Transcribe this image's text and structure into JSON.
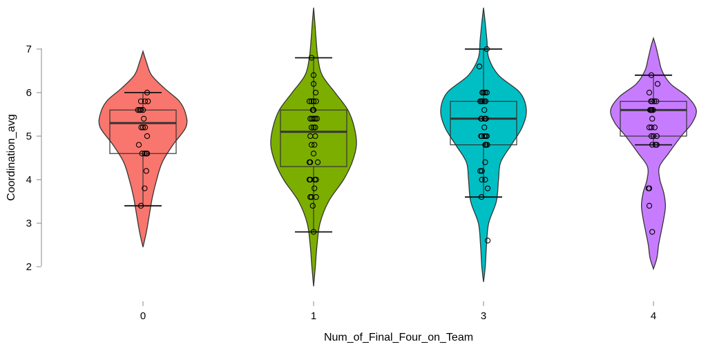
{
  "chart_data": {
    "type": "violin",
    "xlabel": "Num_of_Final_Four_on_Team",
    "ylabel": "Coordination_avg",
    "categories": [
      "0",
      "1",
      "3",
      "4"
    ],
    "ylim": [
      1.5,
      7.6
    ],
    "yticks": [
      2,
      3,
      4,
      5,
      6,
      7
    ],
    "grid": false,
    "legend": "none",
    "colors": [
      "#f8766d",
      "#7cae00",
      "#00bfc4",
      "#c77cff"
    ],
    "groups": [
      {
        "category": "0",
        "box": {
          "whisker_low": 3.4,
          "q1": 4.6,
          "median": 5.3,
          "q3": 5.6,
          "whisker_high": 6.0
        },
        "density": [
          [
            2.45,
            0.0
          ],
          [
            2.8,
            0.08
          ],
          [
            3.2,
            0.15
          ],
          [
            3.6,
            0.22
          ],
          [
            4.0,
            0.32
          ],
          [
            4.4,
            0.45
          ],
          [
            4.8,
            0.7
          ],
          [
            5.2,
            1.0
          ],
          [
            5.5,
            1.0
          ],
          [
            5.8,
            0.85
          ],
          [
            6.1,
            0.5
          ],
          [
            6.4,
            0.2
          ],
          [
            6.7,
            0.08
          ],
          [
            6.95,
            0.0
          ]
        ],
        "points": [
          [
            6.0,
            0.1
          ],
          [
            5.8,
            -0.05
          ],
          [
            5.8,
            0.05
          ],
          [
            5.8,
            0.12
          ],
          [
            5.6,
            -0.12
          ],
          [
            5.6,
            -0.08
          ],
          [
            5.6,
            -0.05
          ],
          [
            5.6,
            0.0
          ],
          [
            5.4,
            0.02
          ],
          [
            5.2,
            -0.04
          ],
          [
            5.2,
            0.0
          ],
          [
            5.2,
            0.05
          ],
          [
            5.0,
            0.1
          ],
          [
            4.8,
            -0.1
          ],
          [
            4.6,
            -0.02
          ],
          [
            4.6,
            0.04
          ],
          [
            4.6,
            0.08
          ],
          [
            4.6,
            0.1
          ],
          [
            4.2,
            0.08
          ],
          [
            3.8,
            0.04
          ],
          [
            3.4,
            -0.05
          ]
        ]
      },
      {
        "category": "1",
        "box": {
          "whisker_low": 2.8,
          "q1": 4.3,
          "median": 5.1,
          "q3": 5.6,
          "whisker_high": 6.8
        },
        "density": [
          [
            1.55,
            0.0
          ],
          [
            2.0,
            0.04
          ],
          [
            2.5,
            0.08
          ],
          [
            3.0,
            0.15
          ],
          [
            3.5,
            0.35
          ],
          [
            4.0,
            0.7
          ],
          [
            4.4,
            0.9
          ],
          [
            4.8,
            1.0
          ],
          [
            5.2,
            0.95
          ],
          [
            5.6,
            0.8
          ],
          [
            6.0,
            0.5
          ],
          [
            6.4,
            0.2
          ],
          [
            6.8,
            0.1
          ],
          [
            7.2,
            0.06
          ],
          [
            7.6,
            0.03
          ],
          [
            7.95,
            0.0
          ]
        ],
        "points": [
          [
            6.8,
            -0.05
          ],
          [
            6.4,
            0.0
          ],
          [
            6.2,
            0.0
          ],
          [
            6.0,
            0.05
          ],
          [
            5.8,
            -0.1
          ],
          [
            5.8,
            -0.05
          ],
          [
            5.8,
            0.0
          ],
          [
            5.8,
            0.06
          ],
          [
            5.6,
            -0.02
          ],
          [
            5.6,
            0.0
          ],
          [
            5.4,
            -0.08
          ],
          [
            5.4,
            -0.04
          ],
          [
            5.4,
            0.0
          ],
          [
            5.4,
            0.04
          ],
          [
            5.4,
            0.08
          ],
          [
            5.2,
            -0.05
          ],
          [
            5.2,
            0.0
          ],
          [
            5.2,
            0.04
          ],
          [
            5.0,
            -0.08
          ],
          [
            5.0,
            0.04
          ],
          [
            4.8,
            -0.05
          ],
          [
            4.8,
            0.02
          ],
          [
            4.6,
            0.0
          ],
          [
            4.4,
            -0.1
          ],
          [
            4.4,
            -0.08
          ],
          [
            4.4,
            0.1
          ],
          [
            4.0,
            -0.1
          ],
          [
            4.0,
            -0.08
          ],
          [
            4.0,
            0.03
          ],
          [
            4.0,
            0.06
          ],
          [
            3.8,
            0.02
          ],
          [
            3.6,
            -0.08
          ],
          [
            3.6,
            -0.05
          ],
          [
            3.6,
            0.06
          ],
          [
            3.4,
            -0.02
          ],
          [
            2.8,
            0.0
          ]
        ]
      },
      {
        "category": "3",
        "box": {
          "whisker_low": 3.6,
          "q1": 4.8,
          "median": 5.4,
          "q3": 5.8,
          "whisker_high": 7.0
        },
        "density": [
          [
            1.65,
            0.0
          ],
          [
            2.0,
            0.04
          ],
          [
            2.5,
            0.07
          ],
          [
            3.0,
            0.12
          ],
          [
            3.5,
            0.3
          ],
          [
            4.0,
            0.35
          ],
          [
            4.4,
            0.4
          ],
          [
            4.8,
            0.65
          ],
          [
            5.2,
            0.9
          ],
          [
            5.6,
            1.0
          ],
          [
            6.0,
            0.85
          ],
          [
            6.4,
            0.35
          ],
          [
            6.8,
            0.12
          ],
          [
            7.2,
            0.08
          ],
          [
            7.6,
            0.04
          ],
          [
            7.95,
            0.0
          ]
        ],
        "points": [
          [
            7.0,
            0.08
          ],
          [
            6.6,
            -0.1
          ],
          [
            6.0,
            -0.03
          ],
          [
            6.0,
            0.0
          ],
          [
            6.0,
            0.04
          ],
          [
            6.0,
            0.08
          ],
          [
            5.8,
            -0.08
          ],
          [
            5.8,
            -0.05
          ],
          [
            5.8,
            -0.02
          ],
          [
            5.8,
            0.02
          ],
          [
            5.8,
            0.05
          ],
          [
            5.6,
            0.02
          ],
          [
            5.4,
            -0.06
          ],
          [
            5.4,
            -0.05
          ],
          [
            5.4,
            0.03
          ],
          [
            5.4,
            0.06
          ],
          [
            5.2,
            0.02
          ],
          [
            5.0,
            -0.06
          ],
          [
            5.0,
            -0.04
          ],
          [
            5.0,
            0.02
          ],
          [
            5.0,
            0.05
          ],
          [
            5.0,
            0.08
          ],
          [
            4.8,
            0.04
          ],
          [
            4.8,
            0.06
          ],
          [
            4.8,
            0.09
          ],
          [
            4.4,
            0.04
          ],
          [
            4.2,
            -0.08
          ],
          [
            4.2,
            -0.04
          ],
          [
            4.0,
            -0.04
          ],
          [
            4.0,
            0.04
          ],
          [
            3.8,
            0.1
          ],
          [
            3.6,
            -0.05
          ],
          [
            2.6,
            0.1
          ]
        ]
      },
      {
        "category": "4",
        "box": {
          "whisker_low": 4.8,
          "q1": 5.0,
          "median": 5.6,
          "q3": 5.8,
          "whisker_high": 6.4
        },
        "density": [
          [
            1.95,
            0.0
          ],
          [
            2.2,
            0.08
          ],
          [
            2.5,
            0.12
          ],
          [
            2.8,
            0.18
          ],
          [
            3.1,
            0.24
          ],
          [
            3.4,
            0.28
          ],
          [
            3.7,
            0.24
          ],
          [
            4.0,
            0.15
          ],
          [
            4.3,
            0.14
          ],
          [
            4.6,
            0.35
          ],
          [
            5.0,
            0.65
          ],
          [
            5.3,
            0.9
          ],
          [
            5.6,
            1.0
          ],
          [
            5.9,
            0.8
          ],
          [
            6.2,
            0.4
          ],
          [
            6.5,
            0.2
          ],
          [
            6.8,
            0.12
          ],
          [
            7.05,
            0.06
          ],
          [
            7.25,
            0.0
          ]
        ],
        "points": [
          [
            6.4,
            -0.05
          ],
          [
            6.2,
            0.1
          ],
          [
            6.0,
            -0.1
          ],
          [
            5.8,
            -0.06
          ],
          [
            5.8,
            -0.03
          ],
          [
            5.8,
            0.02
          ],
          [
            5.8,
            0.07
          ],
          [
            5.6,
            -0.08
          ],
          [
            5.6,
            -0.06
          ],
          [
            5.6,
            -0.04
          ],
          [
            5.6,
            -0.01
          ],
          [
            5.4,
            -0.03
          ],
          [
            5.2,
            -0.1
          ],
          [
            5.2,
            -0.05
          ],
          [
            5.2,
            0.03
          ],
          [
            5.0,
            -0.05
          ],
          [
            5.0,
            0.0
          ],
          [
            5.0,
            0.08
          ],
          [
            4.8,
            -0.03
          ],
          [
            4.8,
            0.05
          ],
          [
            4.8,
            0.08
          ],
          [
            3.8,
            -0.1
          ],
          [
            3.8,
            -0.12
          ],
          [
            3.4,
            -0.1
          ],
          [
            2.8,
            -0.03
          ]
        ]
      }
    ]
  }
}
